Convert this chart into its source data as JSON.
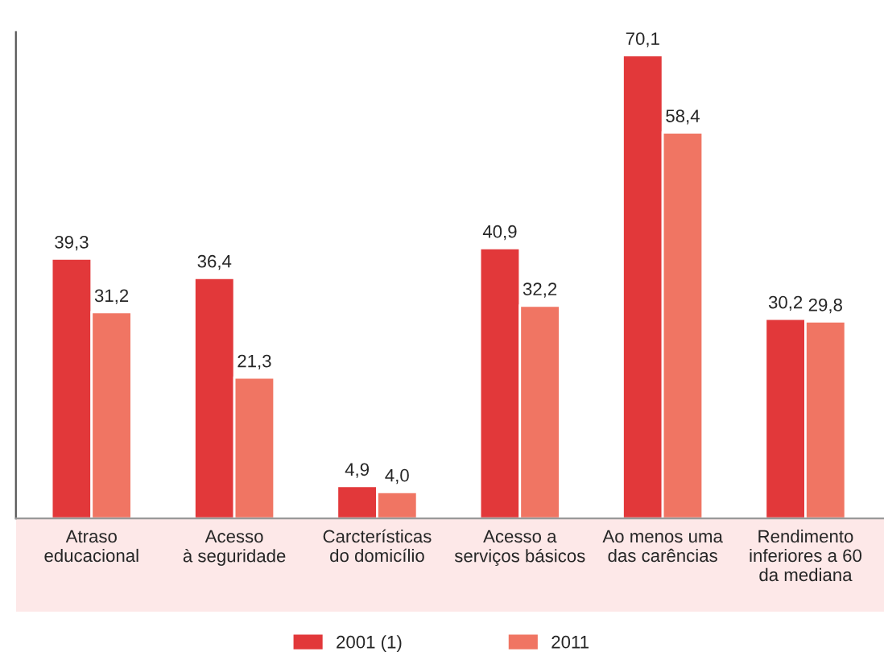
{
  "chart_data": {
    "type": "bar",
    "categories": [
      "Atraso\neducacional",
      "Acesso\nà seguridade",
      "Carcterísticas\ndo domicílio",
      "Acesso a\nserviços básicos",
      "Ao menos uma\ndas carências",
      "Rendimento\ninferiores a 60\nda mediana"
    ],
    "series": [
      {
        "name": "2001 (1)",
        "color": "#e2383a",
        "values": [
          39.3,
          36.4,
          4.9,
          40.9,
          70.1,
          30.2
        ],
        "value_labels": [
          "39,3",
          "36,4",
          "4,9",
          "40,9",
          "70,1",
          "30,2"
        ]
      },
      {
        "name": "2011",
        "color": "#f07563",
        "values": [
          31.2,
          21.3,
          4.0,
          32.2,
          58.4,
          29.8
        ],
        "value_labels": [
          "31,2",
          "21,3",
          "4,0",
          "32,2",
          "58,4",
          "29,8"
        ]
      }
    ],
    "legend": "bottom",
    "grid": false
  }
}
